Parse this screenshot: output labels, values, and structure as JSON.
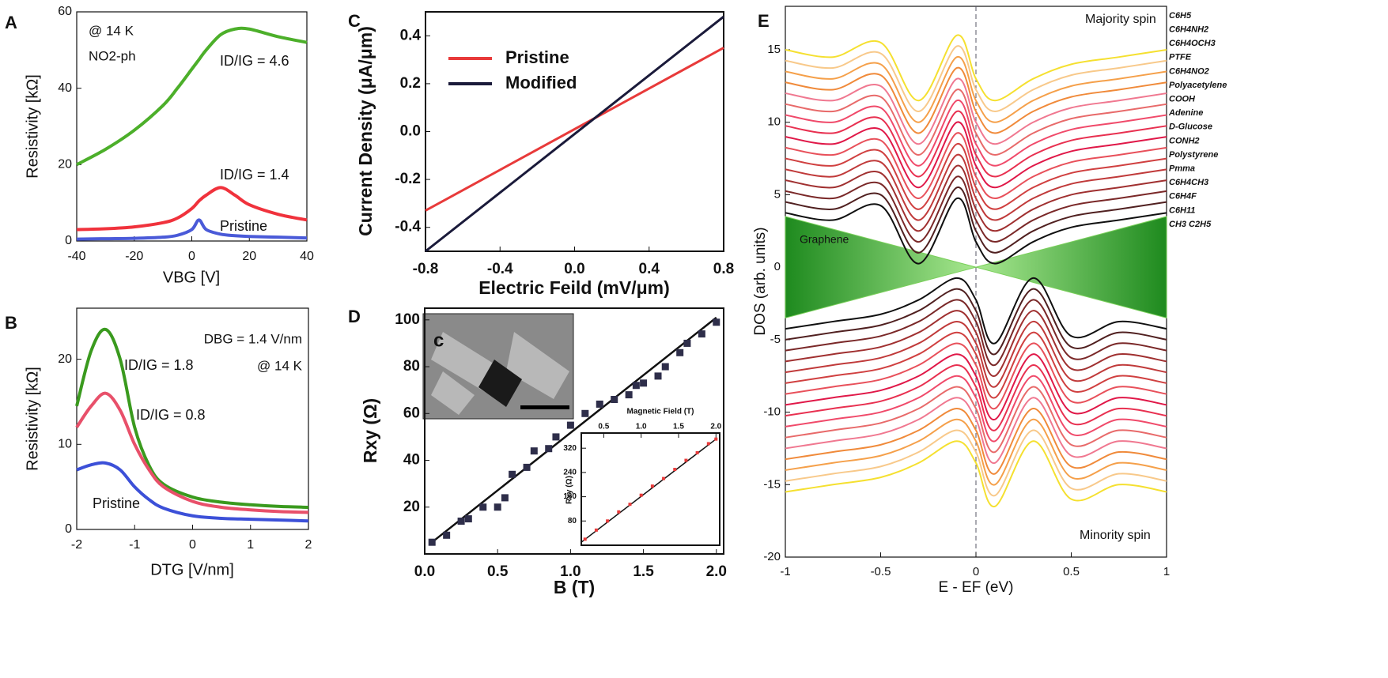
{
  "chart_data": [
    {
      "panel": "A",
      "type": "line",
      "xlabel": "VBG [V]",
      "ylabel": "Resistivity [kΩ]",
      "annotations": [
        "@ 14 K",
        "NO2-ph"
      ],
      "x": [
        -40,
        -30,
        -20,
        -10,
        -5,
        0,
        2.5,
        5,
        10,
        15,
        20,
        30,
        40
      ],
      "series": [
        {
          "name": "ID/IG = 4.6",
          "color": "#4caf2a",
          "values": [
            20,
            24,
            29,
            35.5,
            40,
            45,
            47.5,
            50,
            54,
            55.5,
            55.5,
            53.5,
            52
          ]
        },
        {
          "name": "ID/IG = 1.4",
          "color": "#f0323c",
          "values": [
            3,
            3.2,
            3.7,
            4.8,
            6,
            8.5,
            10.5,
            12,
            14,
            12,
            9.5,
            7,
            5.5
          ]
        },
        {
          "name": "Pristine",
          "color": "#4a5ad8",
          "values": [
            0.5,
            0.6,
            0.7,
            1,
            1.5,
            3,
            5.5,
            3,
            1.8,
            1.4,
            1.2,
            1,
            0.8
          ]
        }
      ],
      "xlim": [
        -40,
        40
      ],
      "ylim": [
        0,
        60
      ],
      "xticks": [
        -40,
        -20,
        0,
        20,
        40
      ],
      "yticks": [
        0,
        20,
        40,
        60
      ]
    },
    {
      "panel": "B",
      "type": "line",
      "xlabel": "DTG [V/nm]",
      "ylabel": "Resistivity [kΩ]",
      "annotations": [
        "DBG = 1.4 V/nm",
        "@ 14 K"
      ],
      "x": [
        -2,
        -1.75,
        -1.5,
        -1.25,
        -1,
        -0.75,
        -0.5,
        0,
        0.5,
        1,
        1.5,
        2
      ],
      "series": [
        {
          "name": "ID/IG = 1.8",
          "color": "#3a9a1e",
          "values": [
            14.5,
            21,
            23.5,
            20,
            12,
            7.5,
            5.3,
            3.8,
            3.2,
            2.9,
            2.7,
            2.6
          ]
        },
        {
          "name": "ID/IG = 0.8",
          "color": "#e8506a",
          "values": [
            12,
            14.5,
            16,
            14,
            10,
            7,
            5,
            3.3,
            2.6,
            2.3,
            2.1,
            2
          ]
        },
        {
          "name": "Pristine",
          "color": "#3c50d8",
          "values": [
            7,
            7.6,
            7.8,
            7,
            5,
            3.5,
            2.5,
            1.6,
            1.3,
            1.2,
            1.1,
            1
          ]
        }
      ],
      "xlim": [
        -2,
        2
      ],
      "ylim": [
        0,
        26
      ],
      "xticks": [
        -2,
        -1,
        0,
        1,
        2
      ],
      "yticks": [
        0,
        10,
        20
      ]
    },
    {
      "panel": "C",
      "type": "line",
      "xlabel": "Electric Feild (mV/μm)",
      "ylabel": "Current Density (μA/μm)",
      "x": [
        -0.8,
        0.8
      ],
      "series": [
        {
          "name": "Pristine",
          "color": "#e83a3a",
          "values": [
            -0.33,
            0.35
          ]
        },
        {
          "name": "Modified",
          "color": "#1a1a3a",
          "values": [
            -0.5,
            0.48
          ]
        }
      ],
      "legend": "upper left",
      "xlim": [
        -0.8,
        0.8
      ],
      "ylim": [
        -0.5,
        0.5
      ],
      "xticks": [
        -0.8,
        -0.4,
        {
          "value": 0,
          "label": "0.0"
        },
        0.4,
        0.8
      ],
      "yticks": [
        -0.4,
        -0.2,
        {
          "value": 0,
          "label": "0.0"
        },
        0.2,
        0.4
      ]
    },
    {
      "panel": "D",
      "type": "scatter",
      "xlabel": "B (T)",
      "ylabel": "Rxy (Ω)",
      "photo_label": "c",
      "x": [
        0.05,
        0.15,
        0.25,
        0.3,
        0.4,
        0.5,
        0.55,
        0.6,
        0.7,
        0.75,
        0.85,
        0.9,
        1.0,
        1.1,
        1.2,
        1.3,
        1.4,
        1.45,
        1.5,
        1.6,
        1.65,
        1.75,
        1.8,
        1.9,
        2.0
      ],
      "values": [
        5,
        8,
        14,
        15,
        20,
        20,
        24,
        34,
        37,
        44,
        45,
        50,
        55,
        60,
        64,
        66,
        68,
        72,
        73,
        76,
        80,
        86,
        90,
        94,
        99
      ],
      "color": "#2e2e4a",
      "fit": {
        "x": [
          0.05,
          2.0
        ],
        "values": [
          5,
          101
        ]
      },
      "xlim": [
        0,
        2.05
      ],
      "ylim": [
        0,
        105
      ],
      "xticks": [
        {
          "value": 0,
          "label": "0.0"
        },
        0.5,
        {
          "value": 1,
          "label": "1.0"
        },
        1.5,
        {
          "value": 2,
          "label": "2.0"
        }
      ],
      "yticks": [
        20,
        40,
        60,
        80,
        100
      ]
    },
    {
      "type": "scatter",
      "xlabel": "Magnetic Field (T)",
      "ylabel": "Rxy (Ω)",
      "x": [
        0.25,
        0.4,
        0.55,
        0.7,
        0.85,
        1.0,
        1.15,
        1.3,
        1.45,
        1.6,
        1.75,
        1.9,
        2.0
      ],
      "values": [
        20,
        50,
        80,
        110,
        135,
        165,
        195,
        220,
        250,
        280,
        305,
        335,
        350
      ],
      "color": "#e83a3a",
      "fit": {
        "x": [
          0.2,
          2.0
        ],
        "values": [
          10,
          350
        ]
      },
      "xlim": [
        0.2,
        2.05
      ],
      "ylim": [
        0,
        370
      ],
      "xticks": [
        0.5,
        {
          "value": 1,
          "label": "1.0"
        },
        1.5,
        {
          "value": 2,
          "label": "2.0"
        }
      ],
      "yticks": [
        80,
        160,
        240,
        320
      ]
    },
    {
      "panel": "E",
      "type": "line",
      "xlabel": "E - EF (eV)",
      "ylabel": "DOS (arb. units)",
      "annotations": [
        "Majority spin",
        "Minority spin"
      ],
      "x": [
        -1,
        -0.75,
        -0.5,
        -0.3,
        -0.1,
        0,
        0.1,
        0.3,
        0.5,
        0.75,
        1
      ],
      "graphene": {
        "name": "Graphene",
        "upper": [
          3.5,
          2.625,
          1.75,
          1.05,
          0.35,
          0,
          0.35,
          1.05,
          1.75,
          2.625,
          3.5
        ],
        "lower": [
          -3.5,
          -2.625,
          -1.75,
          -1.05,
          -0.35,
          0,
          -0.35,
          -1.05,
          -1.75,
          -2.625,
          -3.5
        ]
      },
      "series": [
        {
          "name": "C6H5",
          "color": "#f5e030",
          "values": [
            15,
            14.5,
            15.5,
            11.5,
            16,
            13,
            11.5,
            13,
            14,
            14.5,
            15
          ]
        },
        {
          "name": "C6H4NH2",
          "color": "#f8c98a",
          "values": [
            14.25,
            13.75,
            14.75,
            10.75,
            15.25,
            12.25,
            10.75,
            12.25,
            13.25,
            13.75,
            14.25
          ]
        },
        {
          "name": "C6H4OCH3",
          "color": "#f5a04a",
          "values": [
            13.5,
            13,
            14,
            10,
            14.5,
            11.5,
            10,
            11.5,
            12.5,
            13,
            13.5
          ]
        },
        {
          "name": "PTFE",
          "color": "#f08a3a",
          "values": [
            12.75,
            12.25,
            13.25,
            9.25,
            13.75,
            10.75,
            9.25,
            10.75,
            11.75,
            12.25,
            12.75
          ]
        },
        {
          "name": "C6H4NO2",
          "color": "#f07890",
          "values": [
            12,
            11.5,
            12.5,
            8.5,
            13,
            10,
            8.5,
            10,
            11,
            11.5,
            12
          ]
        },
        {
          "name": "Polyacetylene",
          "color": "#e86a6a",
          "values": [
            11.25,
            10.75,
            11.75,
            7.75,
            12.25,
            9.25,
            7.75,
            9.25,
            10.25,
            10.75,
            11.25
          ]
        },
        {
          "name": "COOH",
          "color": "#f04a6a",
          "values": [
            10.5,
            10,
            11,
            7,
            11.5,
            8.5,
            7,
            8.5,
            9.5,
            10,
            10.5
          ]
        },
        {
          "name": "Adenine",
          "color": "#e83050",
          "values": [
            9.75,
            9.25,
            10.25,
            6.25,
            10.75,
            7.75,
            6.25,
            7.75,
            8.75,
            9.25,
            9.75
          ]
        },
        {
          "name": "D-Glucose",
          "color": "#e01848",
          "values": [
            9,
            8.5,
            9.5,
            5.5,
            10,
            7,
            5.5,
            7,
            8,
            8.5,
            9
          ]
        },
        {
          "name": "CONH2",
          "color": "#e8505a",
          "values": [
            8.25,
            7.75,
            8.75,
            4.75,
            9.25,
            6.25,
            4.75,
            6.25,
            7.25,
            7.75,
            8.25
          ]
        },
        {
          "name": "Polystyrene",
          "color": "#d04040",
          "values": [
            7.5,
            7,
            8,
            4,
            8.5,
            5.5,
            4,
            5.5,
            6.5,
            7,
            7.5
          ]
        },
        {
          "name": "Pmma",
          "color": "#c03a3a",
          "values": [
            6.75,
            6.25,
            7.25,
            3.25,
            7.75,
            4.75,
            3.25,
            4.75,
            5.75,
            6.25,
            6.75
          ]
        },
        {
          "name": "C6H4CH3",
          "color": "#a03030",
          "values": [
            6,
            5.5,
            6.5,
            2.5,
            7,
            4,
            2.5,
            4,
            5,
            5.5,
            6
          ]
        },
        {
          "name": "C6H4F",
          "color": "#7a2828",
          "values": [
            5.25,
            4.75,
            5.75,
            1.75,
            6.25,
            3.25,
            1.75,
            3.25,
            4.25,
            4.75,
            5.25
          ]
        },
        {
          "name": "C6H11",
          "color": "#502020",
          "values": [
            4.5,
            4,
            5,
            1,
            5.5,
            2.5,
            1,
            2.5,
            3.5,
            4,
            4.5
          ]
        },
        {
          "name": "CH3 C2H5",
          "color": "#101010",
          "values": [
            3.75,
            3.25,
            4.25,
            0.25,
            4.75,
            1.75,
            0.25,
            1.75,
            2.75,
            3.25,
            3.75
          ]
        },
        {
          "color": "#f5e030",
          "values": [
            -15.5,
            -15,
            -14.5,
            -13.5,
            -12,
            -13.5,
            -16.5,
            -12,
            -16,
            -15,
            -15.5
          ]
        },
        {
          "color": "#f8c98a",
          "values": [
            -14.75,
            -14.25,
            -13.75,
            -12.75,
            -11.25,
            -12.75,
            -15.75,
            -11.25,
            -15.25,
            -14.25,
            -14.75
          ]
        },
        {
          "color": "#f5a04a",
          "values": [
            -14,
            -13.5,
            -13,
            -12,
            -10.5,
            -12,
            -15,
            -10.5,
            -14.5,
            -13.5,
            -14
          ]
        },
        {
          "color": "#f08a3a",
          "values": [
            -13.25,
            -12.75,
            -12.25,
            -11.25,
            -9.75,
            -11.25,
            -14.25,
            -9.75,
            -13.75,
            -12.75,
            -13.25
          ]
        },
        {
          "color": "#f07890",
          "values": [
            -12.5,
            -12,
            -11.5,
            -10.5,
            -9,
            -10.5,
            -13.5,
            -9,
            -13,
            -12,
            -12.5
          ]
        },
        {
          "color": "#e86a6a",
          "values": [
            -11.75,
            -11.25,
            -10.75,
            -9.75,
            -8.25,
            -9.75,
            -12.75,
            -8.25,
            -12.25,
            -11.25,
            -11.75
          ]
        },
        {
          "color": "#f04a6a",
          "values": [
            -11,
            -10.5,
            -10,
            -9,
            -7.5,
            -9,
            -12,
            -7.5,
            -11.5,
            -10.5,
            -11
          ]
        },
        {
          "color": "#e83050",
          "values": [
            -10.25,
            -9.75,
            -9.25,
            -8.25,
            -6.75,
            -8.25,
            -11.25,
            -6.75,
            -10.75,
            -9.75,
            -10.25
          ]
        },
        {
          "color": "#e01848",
          "values": [
            -9.5,
            -9,
            -8.5,
            -7.5,
            -6,
            -7.5,
            -10.5,
            -6,
            -10,
            -9,
            -9.5
          ]
        },
        {
          "color": "#e8505a",
          "values": [
            -8.75,
            -8.25,
            -7.75,
            -6.75,
            -5.25,
            -6.75,
            -9.75,
            -5.25,
            -9.25,
            -8.25,
            -8.75
          ]
        },
        {
          "color": "#d04040",
          "values": [
            -8,
            -7.5,
            -7,
            -6,
            -4.5,
            -6,
            -9,
            -4.5,
            -8.5,
            -7.5,
            -8
          ]
        },
        {
          "color": "#c03a3a",
          "values": [
            -7.25,
            -6.75,
            -6.25,
            -5.25,
            -3.75,
            -5.25,
            -8.25,
            -3.75,
            -7.75,
            -6.75,
            -7.25
          ]
        },
        {
          "color": "#a03030",
          "values": [
            -6.5,
            -6,
            -5.5,
            -4.5,
            -3,
            -4.5,
            -7.5,
            -3,
            -7,
            -6,
            -6.5
          ]
        },
        {
          "color": "#7a2828",
          "values": [
            -5.75,
            -5.25,
            -4.75,
            -3.75,
            -2.25,
            -3.75,
            -6.75,
            -2.25,
            -6.25,
            -5.25,
            -5.75
          ]
        },
        {
          "color": "#502020",
          "values": [
            -5,
            -4.5,
            -4,
            -3,
            -1.5,
            -3,
            -6,
            -1.5,
            -5.5,
            -4.5,
            -5
          ]
        },
        {
          "color": "#101010",
          "values": [
            -4.25,
            -3.75,
            -3.25,
            -2.25,
            -0.75,
            -2.25,
            -5.25,
            -0.75,
            -4.75,
            -3.75,
            -4.25
          ]
        }
      ],
      "xlim": [
        -1,
        1
      ],
      "ylim": [
        -20,
        18
      ],
      "xticks": [
        -1,
        -0.5,
        0,
        0.5,
        1
      ],
      "yticks": [
        -20,
        -15,
        -10,
        -5,
        0,
        5,
        10,
        15
      ]
    }
  ]
}
